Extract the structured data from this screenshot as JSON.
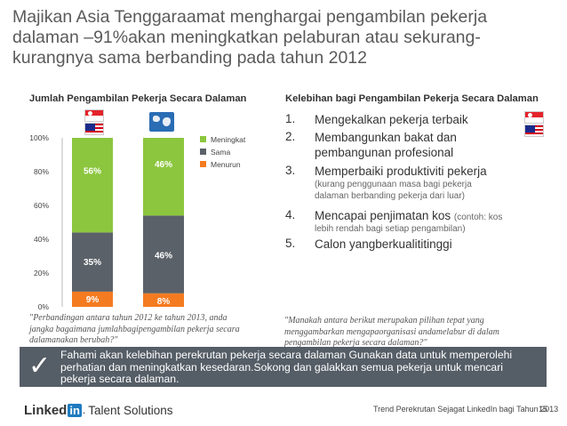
{
  "title": "Majikan Asia Tenggaraamat menghargai pengambilan pekerja dalaman –91%akan meningkatkan pelaburan atau sekurang-kurangnya sama berbanding pada tahun 2012",
  "chart_title": "Jumlah Pengambilan Pekerja Secara Dalaman",
  "benefits_title": "Kelebihan bagi Pengambilan Pekerja Secara Dalaman",
  "chart_data": {
    "type": "bar",
    "stacked": true,
    "percent": true,
    "categories": [
      "",
      ""
    ],
    "series": [
      {
        "name": "Menurun",
        "values": [
          9,
          8
        ],
        "color": "#f47b20"
      },
      {
        "name": "Sama",
        "values": [
          35,
          46
        ],
        "color": "#5b6168"
      },
      {
        "name": "Meningkat",
        "values": [
          56,
          46
        ],
        "color": "#8cc63e"
      }
    ],
    "ylim": [
      0,
      100
    ],
    "yticks": [
      "0%",
      "20%",
      "40%",
      "60%",
      "80%",
      "100%"
    ],
    "legend": [
      "Meningkat",
      "Sama",
      "Menurun"
    ],
    "legend_position": "right",
    "grid": false,
    "category_icons": [
      "flags-icon",
      "globe-icon"
    ]
  },
  "benefits": [
    {
      "num": "1.",
      "text": "Mengekalkan pekerja terbaik",
      "note": ""
    },
    {
      "num": "2.",
      "text": "Membangunkan bakat dan pembangunan profesional",
      "note": ""
    },
    {
      "num": "3.",
      "text": "Memperbaiki produktiviti pekerja",
      "note": "(kurang penggunaan masa bagi pekerja dalaman berbanding pekerja dari luar)"
    },
    {
      "num": "4.",
      "text": "Mencapai penjimatan kos",
      "inline_note": "(contoh: kos",
      "note": "lebih rendah bagi setiap pengambilan)"
    },
    {
      "num": "5.",
      "text": "Calon yangberkualititinggi",
      "note": ""
    }
  ],
  "quote_left": "\"Perbandingan antara tahun 2012 ke tahun 2013, anda jangka bagaimana jumlahbagipengambilan pekerja secara dalamanakan berubah?\"",
  "quote_right": "\"Manakah antara berikut merupakan pilihan tepat yang menggambarkan mengapaorganisasi andamelabur di dalam pengambilan pekerja secara dalaman?\"",
  "banner": {
    "check_icon": "checkmark-icon",
    "text": "Fahami akan kelebihan perekrutan pekerja secara dalaman Gunakan data untuk memperolehi perhatian dan meningkatkan kesedaran.Sokong dan galakkan semua pekerja untuk mencari pekerja secara dalaman."
  },
  "logo": {
    "linked": "Linked",
    "in": "in",
    "dot": ".",
    "sub": "Talent Solutions"
  },
  "footer": {
    "text": "Trend Perekrutan Sejagat LinkedIn bagi Tahun 2013",
    "page": "15"
  }
}
